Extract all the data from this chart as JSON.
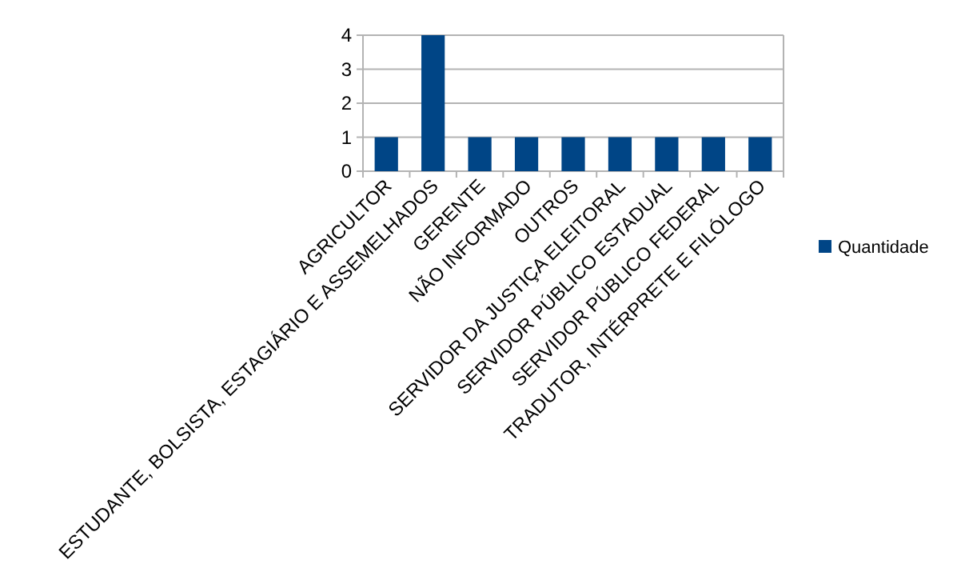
{
  "chart_data": {
    "type": "bar",
    "categories": [
      "AGRICULTOR",
      "ESTUDANTE, BOLSISTA, ESTAGIÁRIO E ASSEMELHADOS",
      "GERENTE",
      "NÃO INFORMADO",
      "OUTROS",
      "SERVIDOR DA JUSTIÇA ELEITORAL",
      "SERVIDOR PÚBLICO ESTADUAL",
      "SERVIDOR PÚBLICO FEDERAL",
      "TRADUTOR, INTÉRPRETE E FILÓLOGO"
    ],
    "series": [
      {
        "name": "Quantidade",
        "color": "#004586",
        "values": [
          1,
          4,
          1,
          1,
          1,
          1,
          1,
          1,
          1
        ]
      }
    ],
    "ylim": [
      0,
      4
    ],
    "yticks": [
      0,
      1,
      2,
      3,
      4
    ],
    "grid": "y",
    "legend": "right"
  }
}
